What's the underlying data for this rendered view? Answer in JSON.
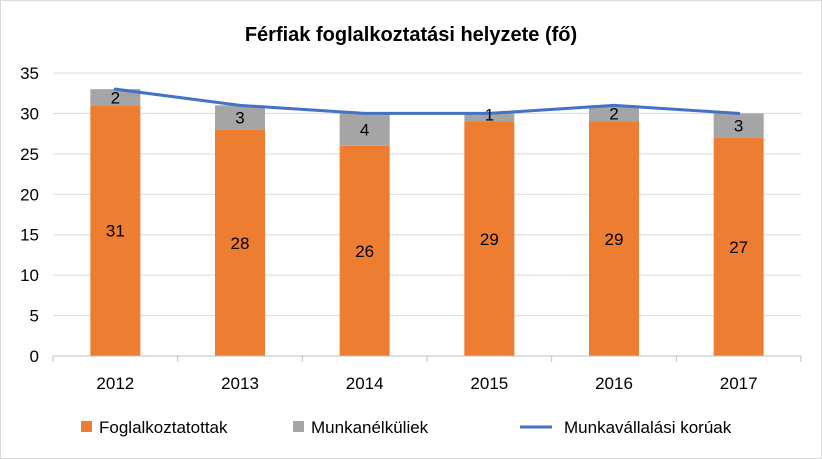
{
  "colors": {
    "employed": "#ED7D31",
    "unemployed": "#A5A5A5",
    "working_age": "#4472C4",
    "grid": "#D9D9D9",
    "axis": "#BFBFBF"
  },
  "chart_data": {
    "type": "bar",
    "stacked": true,
    "title": "Férfiak foglalkoztatási helyzete (fő)",
    "xlabel": "",
    "ylabel": "",
    "categories": [
      "2012",
      "2013",
      "2014",
      "2015",
      "2016",
      "2017"
    ],
    "ylim": [
      0,
      35
    ],
    "yticks": [
      "0",
      "5",
      "10",
      "15",
      "20",
      "25",
      "30",
      "35"
    ],
    "grid": true,
    "legend_position": "bottom",
    "series": [
      {
        "name": "Foglalkoztatottak",
        "type": "bar",
        "color": "#ED7D31",
        "values": [
          31,
          28,
          26,
          29,
          29,
          27
        ]
      },
      {
        "name": "Munkanélküliek",
        "type": "bar",
        "color": "#A5A5A5",
        "values": [
          2,
          3,
          4,
          1,
          2,
          3
        ]
      },
      {
        "name": "Munkavállalási korúak",
        "type": "line",
        "color": "#4472C4",
        "values": [
          33,
          31,
          30,
          30,
          31,
          30
        ]
      }
    ]
  }
}
